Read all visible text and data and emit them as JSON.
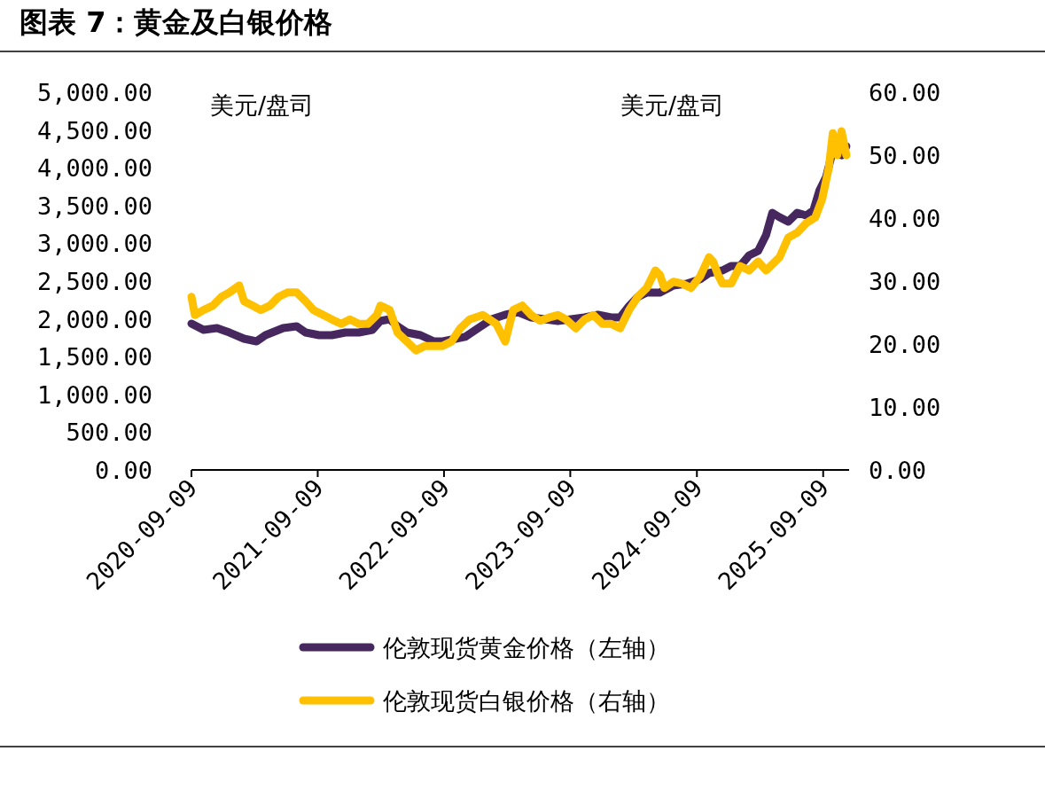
{
  "chart_data": {
    "type": "line",
    "title": "图表 7：黄金及白银价格",
    "ylabel": "美元/盘司",
    "y2label": "美元/盘司",
    "legend": "bottom",
    "grid": false,
    "xlim": [
      "2020-09-09",
      "2025-11-23"
    ],
    "xticks": [
      {
        "value": "2020-09-09",
        "label": "2020-09-09"
      },
      {
        "value": "2021-09-09",
        "label": "2021-09-09"
      },
      {
        "value": "2022-09-09",
        "label": "2022-09-09"
      },
      {
        "value": "2023-09-09",
        "label": "2023-09-09"
      },
      {
        "value": "2024-09-09",
        "label": "2024-09-09"
      },
      {
        "value": "2025-09-09",
        "label": "2025-09-09"
      }
    ],
    "ylim": [
      0,
      5000
    ],
    "yticks": [
      {
        "value": 0,
        "label": "0.00"
      },
      {
        "value": 500,
        "label": "500.00"
      },
      {
        "value": 1000,
        "label": "1,000.00"
      },
      {
        "value": 1500,
        "label": "1,500.00"
      },
      {
        "value": 2000,
        "label": "2,000.00"
      },
      {
        "value": 2500,
        "label": "2,500.00"
      },
      {
        "value": 3000,
        "label": "3,000.00"
      },
      {
        "value": 3500,
        "label": "3,500.00"
      },
      {
        "value": 4000,
        "label": "4,000.00"
      },
      {
        "value": 4500,
        "label": "4,500.00"
      },
      {
        "value": 5000,
        "label": "5,000.00"
      }
    ],
    "y2lim": [
      0,
      60
    ],
    "y2ticks": [
      {
        "value": 0,
        "label": "0.00"
      },
      {
        "value": 10,
        "label": "10.00"
      },
      {
        "value": 20,
        "label": "20.00"
      },
      {
        "value": 30,
        "label": "30.00"
      },
      {
        "value": 40,
        "label": "40.00"
      },
      {
        "value": 50,
        "label": "50.00"
      },
      {
        "value": 60,
        "label": "60.00"
      }
    ],
    "series": [
      {
        "name": "伦敦现货黄金价格（左轴）",
        "color": "#46275e",
        "x": [
          "2020-09-09",
          "2020-10-14",
          "2020-11-22",
          "2020-12-28",
          "2021-02-08",
          "2021-03-16",
          "2021-04-11",
          "2021-06-01",
          "2021-07-10",
          "2021-08-05",
          "2021-09-13",
          "2021-10-20",
          "2021-11-28",
          "2022-01-06",
          "2022-02-14",
          "2022-03-09",
          "2022-04-05",
          "2022-04-28",
          "2022-05-25",
          "2022-07-03",
          "2022-08-11",
          "2022-09-05",
          "2022-10-01",
          "2022-11-09",
          "2022-12-17",
          "2023-01-25",
          "2023-03-05",
          "2023-04-11",
          "2023-05-19",
          "2023-06-27",
          "2023-08-04",
          "2023-09-12",
          "2023-10-20",
          "2023-11-28",
          "2024-01-05",
          "2024-01-31",
          "2024-02-26",
          "2024-03-22",
          "2024-04-17",
          "2024-05-25",
          "2024-07-03",
          "2024-08-10",
          "2024-09-18",
          "2024-10-14",
          "2024-11-22",
          "2024-12-17",
          "2025-01-12",
          "2025-02-07",
          "2025-03-05",
          "2025-03-28",
          "2025-04-15",
          "2025-05-06",
          "2025-05-31",
          "2025-06-26",
          "2025-07-22",
          "2025-08-12",
          "2025-08-29",
          "2025-09-17",
          "2025-10-07",
          "2025-11-01",
          "2025-11-15"
        ],
        "values": [
          1937,
          1854,
          1878,
          1819,
          1737,
          1702,
          1784,
          1878,
          1901,
          1819,
          1784,
          1784,
          1819,
          1819,
          1854,
          1972,
          1995,
          1901,
          1819,
          1784,
          1702,
          1702,
          1725,
          1761,
          1878,
          1995,
          2054,
          2089,
          2019,
          1995,
          1972,
          1995,
          2019,
          2054,
          2019,
          2019,
          2171,
          2289,
          2347,
          2347,
          2441,
          2465,
          2523,
          2606,
          2641,
          2700,
          2700,
          2840,
          2899,
          3110,
          3404,
          3345,
          3286,
          3404,
          3368,
          3439,
          3697,
          3873,
          4225,
          4167,
          4284
        ]
      },
      {
        "name": "伦敦现货白银价格（右轴）",
        "color": "#ffc000",
        "axis": "y2",
        "x": [
          "2020-09-09",
          "2020-09-19",
          "2020-10-14",
          "2020-11-10",
          "2020-12-05",
          "2020-12-28",
          "2021-01-25",
          "2021-02-08",
          "2021-03-05",
          "2021-03-28",
          "2021-04-24",
          "2021-05-19",
          "2021-06-14",
          "2021-07-10",
          "2021-08-05",
          "2021-08-28",
          "2021-09-25",
          "2021-10-20",
          "2021-11-16",
          "2021-12-11",
          "2022-01-06",
          "2022-02-01",
          "2022-02-27",
          "2022-03-09",
          "2022-04-05",
          "2022-04-28",
          "2022-05-25",
          "2022-06-20",
          "2022-07-16",
          "2022-08-11",
          "2022-09-05",
          "2022-10-01",
          "2022-10-26",
          "2022-11-22",
          "2022-12-30",
          "2023-02-07",
          "2023-03-05",
          "2023-03-28",
          "2023-04-23",
          "2023-05-19",
          "2023-06-14",
          "2023-07-09",
          "2023-08-04",
          "2023-08-28",
          "2023-09-25",
          "2023-10-20",
          "2023-11-15",
          "2023-12-11",
          "2024-01-05",
          "2024-01-31",
          "2024-02-26",
          "2024-03-22",
          "2024-04-17",
          "2024-05-12",
          "2024-05-25",
          "2024-06-07",
          "2024-07-03",
          "2024-07-28",
          "2024-08-23",
          "2024-09-18",
          "2024-10-14",
          "2024-10-26",
          "2024-11-09",
          "2024-11-22",
          "2024-12-17",
          "2025-01-12",
          "2025-02-07",
          "2025-03-05",
          "2025-03-28",
          "2025-04-10",
          "2025-05-06",
          "2025-05-31",
          "2025-06-26",
          "2025-07-22",
          "2025-08-17",
          "2025-09-06",
          "2025-09-25",
          "2025-10-07",
          "2025-10-20",
          "2025-11-01",
          "2025-11-15"
        ],
        "values": [
          27.5,
          24.6,
          25.4,
          26.1,
          27.5,
          28.2,
          29.3,
          26.8,
          26.1,
          25.4,
          26.1,
          27.5,
          28.2,
          28.2,
          26.8,
          25.4,
          24.6,
          23.9,
          23.2,
          23.9,
          23.2,
          23.2,
          24.6,
          26.1,
          25.4,
          21.8,
          20.4,
          19.0,
          19.7,
          19.7,
          19.7,
          20.4,
          22.5,
          23.9,
          24.6,
          23.2,
          20.4,
          25.4,
          26.1,
          24.6,
          23.7,
          24.2,
          24.6,
          23.9,
          22.5,
          23.9,
          24.6,
          23.2,
          23.2,
          22.5,
          25.4,
          27.5,
          28.9,
          31.7,
          31.0,
          28.9,
          29.9,
          29.6,
          28.9,
          30.7,
          33.8,
          33.1,
          31.0,
          29.6,
          29.6,
          32.4,
          31.7,
          33.1,
          31.7,
          32.4,
          33.8,
          36.9,
          37.7,
          39.2,
          40.1,
          43.0,
          47.9,
          53.5,
          50.0,
          53.8,
          50.0
        ]
      }
    ]
  }
}
